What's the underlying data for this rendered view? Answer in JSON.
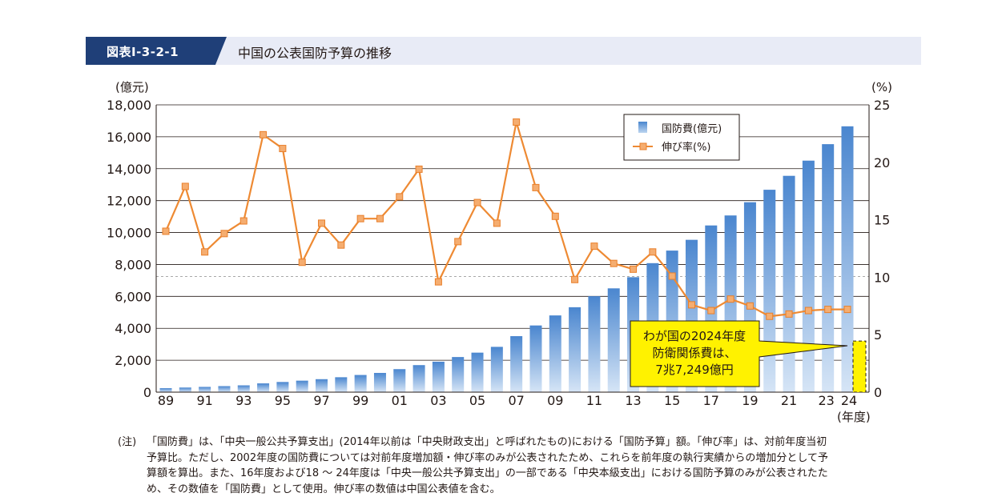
{
  "header": {
    "figure_id": "図表Ⅰ-3-2-1",
    "title": "中国の公表国防予算の推移"
  },
  "note": {
    "label": "(注)",
    "text": "「国防費」は、「中央一般公共予算支出」(2014年以前は「中央財政支出」と呼ばれたもの)における「国防予算」額。「伸び率」は、対前年度当初予算比。ただし、2002年度の国防費については対前年度増加額・伸び率のみが公表されたため、これらを前年度の執行実績からの増加分として予算額を算出。また、16年度および18 ～ 24年度は「中央一般公共予算支出」の一部である「中央本級支出」における国防予算のみが公表されたため、その数値を「国防費」として使用。伸び率の数値は中国公表値を含む。"
  },
  "callout": {
    "lines": [
      "わが国の2024年度",
      "防衛関係費は、",
      "7兆7,249億円"
    ],
    "color": "#fff200",
    "value": 77249
  },
  "chart_data": {
    "type": "bar+line",
    "y_left_unit": "(億元)",
    "y_right_unit": "(%)",
    "x_unit": "(年度)",
    "ylim_left": [
      0,
      18000
    ],
    "ylim_right": [
      0,
      25
    ],
    "yticks_left": [
      "0",
      "2,000",
      "4,000",
      "6,000",
      "8,000",
      "10,000",
      "12,000",
      "14,000",
      "16,000",
      "18,000"
    ],
    "yticks_right": [
      "0",
      "5",
      "10",
      "15",
      "20",
      "25"
    ],
    "xtick_labels": [
      "89",
      "91",
      "93",
      "95",
      "97",
      "99",
      "01",
      "03",
      "05",
      "07",
      "09",
      "11",
      "13",
      "15",
      "17",
      "19",
      "21",
      "23",
      "24"
    ],
    "legend": {
      "bar": "国防費(億元)",
      "line": "伸び率(%)",
      "position": "top-right"
    },
    "years": [
      1989,
      1990,
      1991,
      1992,
      1993,
      1994,
      1995,
      1996,
      1997,
      1998,
      1999,
      2000,
      2001,
      2002,
      2003,
      2004,
      2005,
      2006,
      2007,
      2008,
      2009,
      2010,
      2011,
      2012,
      2013,
      2014,
      2015,
      2016,
      2017,
      2018,
      2019,
      2020,
      2021,
      2022,
      2023,
      2024
    ],
    "series": [
      {
        "name": "国防費(億元)",
        "kind": "bar",
        "color": "#5b8fd0",
        "values": [
          251,
          290,
          330,
          378,
          426,
          550,
          637,
          720,
          813,
          934,
          1076,
          1205,
          1442,
          1694,
          1908,
          2200,
          2475,
          2838,
          3509,
          4178,
          4807,
          5321,
          6011,
          6503,
          7202,
          8082,
          8869,
          9544,
          10444,
          11070,
          11899,
          12680,
          13553,
          14505,
          15537,
          16655
        ]
      },
      {
        "name": "伸び率(%)",
        "kind": "line",
        "color": "#ee8a33",
        "values": [
          14.0,
          17.9,
          12.2,
          13.8,
          14.9,
          22.4,
          21.2,
          11.3,
          14.7,
          12.8,
          15.1,
          15.1,
          17.0,
          19.4,
          9.6,
          13.1,
          16.5,
          14.7,
          23.5,
          17.8,
          15.3,
          9.8,
          12.7,
          11.2,
          10.7,
          12.2,
          10.1,
          7.6,
          7.1,
          8.1,
          7.5,
          6.6,
          6.8,
          7.1,
          7.2,
          7.2
        ]
      }
    ],
    "reference_line": {
      "value_left": 7250,
      "style": "dashed"
    }
  }
}
